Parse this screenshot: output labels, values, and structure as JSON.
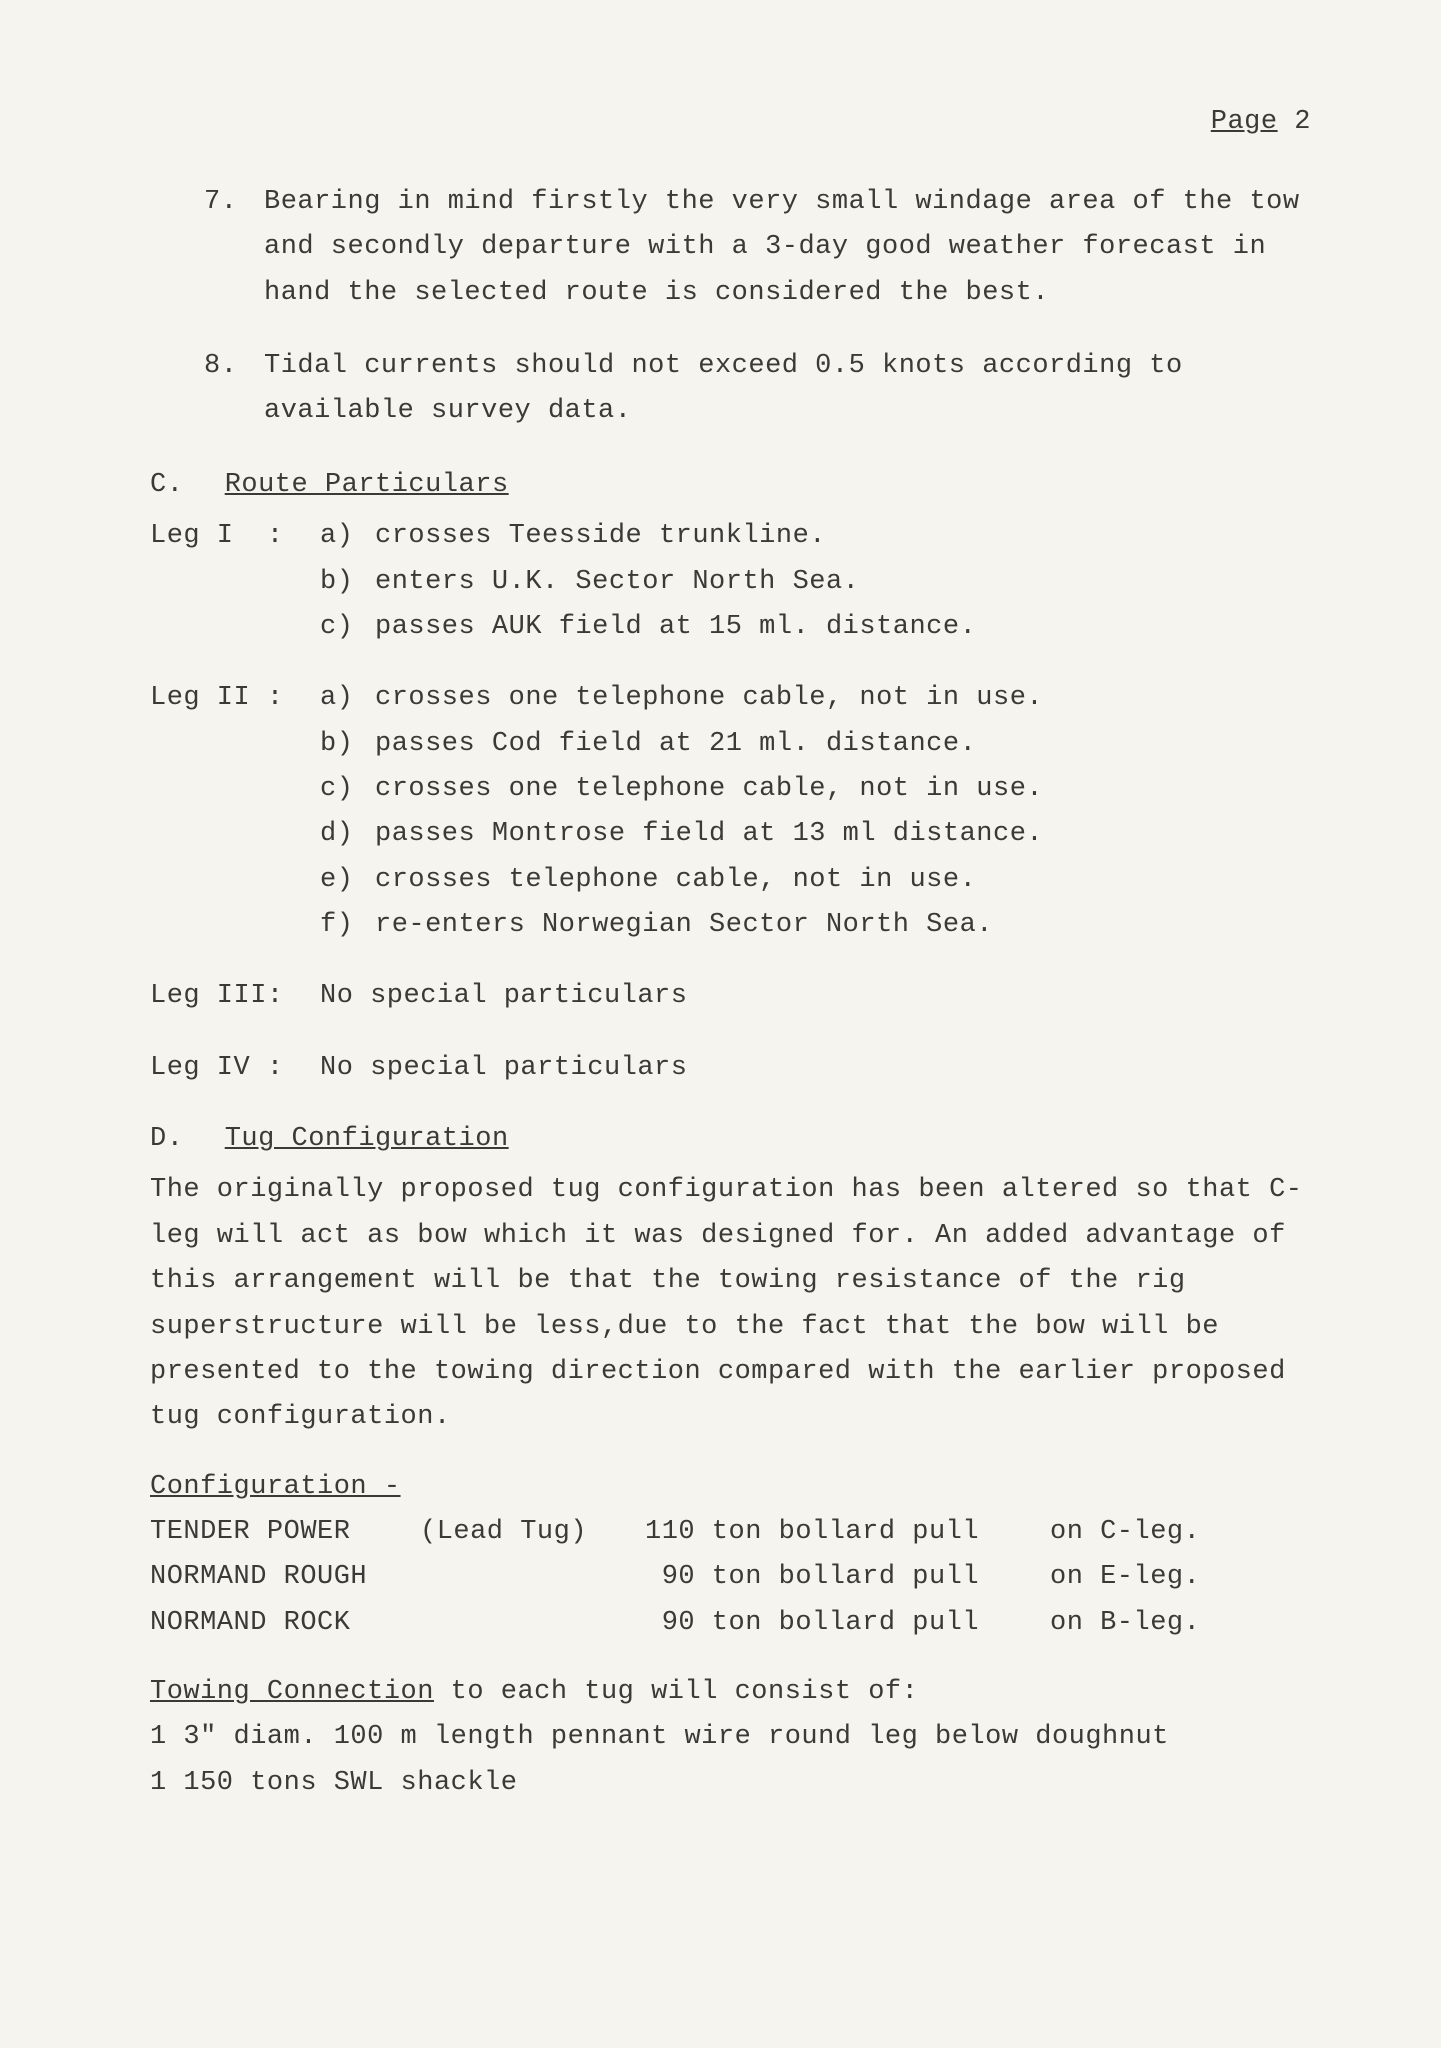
{
  "page_number": {
    "label": "Page",
    "value": "2"
  },
  "items": {
    "n7": {
      "num": "7.",
      "text": "Bearing in mind firstly the very small windage area of the tow and secondly departure with a 3-day good weather forecast in hand the selected route is considered the best."
    },
    "n8": {
      "num": "8.",
      "text": "Tidal currents should not exceed 0.5 knots according to available survey data."
    }
  },
  "sectionC": {
    "lead": "C.",
    "title": "Route Particulars",
    "legs": {
      "I": {
        "label": "Leg I  :",
        "rows": [
          {
            "k": "a)",
            "t": "crosses Teesside trunkline."
          },
          {
            "k": "b)",
            "t": "enters U.K. Sector North Sea."
          },
          {
            "k": "c)",
            "t": "passes  AUK field at 15 ml. distance."
          }
        ]
      },
      "II": {
        "label": "Leg II :",
        "rows": [
          {
            "k": "a)",
            "t": "crosses one telephone cable, not in use."
          },
          {
            "k": "b)",
            "t": "passes Cod field at 21 ml. distance."
          },
          {
            "k": "c)",
            "t": "crosses one telephone cable, not in use."
          },
          {
            "k": "d)",
            "t": "passes Montrose field at 13 ml distance."
          },
          {
            "k": "e)",
            "t": "crosses telephone cable, not in use."
          },
          {
            "k": "f)",
            "t": "re-enters Norwegian Sector North Sea."
          }
        ]
      },
      "III": {
        "label": "Leg III:",
        "text": "No special particulars"
      },
      "IV": {
        "label": "Leg IV :",
        "text": "No special particulars"
      }
    }
  },
  "sectionD": {
    "lead": "D.",
    "title": "Tug Configuration",
    "para": "The originally proposed tug configuration has been altered so that C-leg will act as bow which it was designed for.  An added advantage of this arrangement will be that the towing resistance of the rig superstructure will be less,due to the fact that the bow  will be presented to the towing direction compared with the earlier proposed tug configuration.",
    "config_title": "Configuration -",
    "config": [
      {
        "name": "TENDER POWER",
        "role": "(Lead Tug)",
        "pull": "110 ton bollard pull",
        "leg": "on C-leg."
      },
      {
        "name": "NORMAND ROUGH",
        "role": "",
        "pull": " 90 ton bollard pull",
        "leg": "on E-leg."
      },
      {
        "name": "NORMAND ROCK",
        "role": "",
        "pull": " 90 ton bollard pull",
        "leg": "on B-leg."
      }
    ],
    "towing": {
      "title": "Towing Connection",
      "tail": " to each tug will consist of:",
      "lines": [
        "1 3\" diam.  100 m length pennant wire round leg below doughnut",
        "1 150 tons SWL shackle"
      ]
    }
  }
}
